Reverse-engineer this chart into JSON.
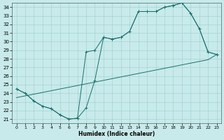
{
  "xlabel": "Humidex (Indice chaleur)",
  "xlim": [
    -0.5,
    23.5
  ],
  "ylim": [
    20.5,
    34.5
  ],
  "yticks": [
    21,
    22,
    23,
    24,
    25,
    26,
    27,
    28,
    29,
    30,
    31,
    32,
    33,
    34
  ],
  "xticks": [
    0,
    1,
    2,
    3,
    4,
    5,
    6,
    7,
    8,
    9,
    10,
    11,
    12,
    13,
    14,
    15,
    16,
    17,
    18,
    19,
    20,
    21,
    22,
    23
  ],
  "bg_color": "#c8eaea",
  "line_color": "#1a7070",
  "curve1_x": [
    0,
    1,
    2,
    3,
    4,
    5,
    6,
    7,
    8,
    9,
    10,
    11,
    12,
    13,
    14,
    15,
    16,
    17,
    18,
    19,
    20,
    21,
    22,
    23
  ],
  "curve1_y": [
    24.5,
    24.0,
    23.1,
    22.5,
    22.2,
    21.5,
    21.0,
    21.1,
    22.3,
    25.5,
    30.5,
    30.3,
    30.5,
    31.2,
    33.5,
    33.5,
    33.5,
    34.0,
    34.2,
    34.5,
    33.3,
    31.5,
    28.8,
    28.5
  ],
  "curve2_x": [
    0,
    1,
    2,
    3,
    4,
    5,
    6,
    7,
    8,
    9,
    10,
    11,
    12,
    13,
    14,
    15,
    16,
    17,
    18,
    19,
    20,
    21,
    22,
    23
  ],
  "curve2_y": [
    24.5,
    24.0,
    23.1,
    22.5,
    22.2,
    21.5,
    21.0,
    21.1,
    28.8,
    29.0,
    30.5,
    30.3,
    30.5,
    31.2,
    33.5,
    33.5,
    33.5,
    34.0,
    34.2,
    34.5,
    33.3,
    31.5,
    28.8,
    28.5
  ],
  "line3_x": [
    0,
    1,
    2,
    3,
    4,
    5,
    6,
    7,
    8,
    9,
    10,
    11,
    12,
    13,
    14,
    15,
    16,
    17,
    18,
    19,
    20,
    21,
    22,
    23
  ],
  "line3_y": [
    23.5,
    23.7,
    23.9,
    24.1,
    24.3,
    24.5,
    24.7,
    24.9,
    25.1,
    25.3,
    25.5,
    25.7,
    25.9,
    26.1,
    26.3,
    26.5,
    26.7,
    26.9,
    27.1,
    27.3,
    27.5,
    27.7,
    27.9,
    28.5
  ]
}
